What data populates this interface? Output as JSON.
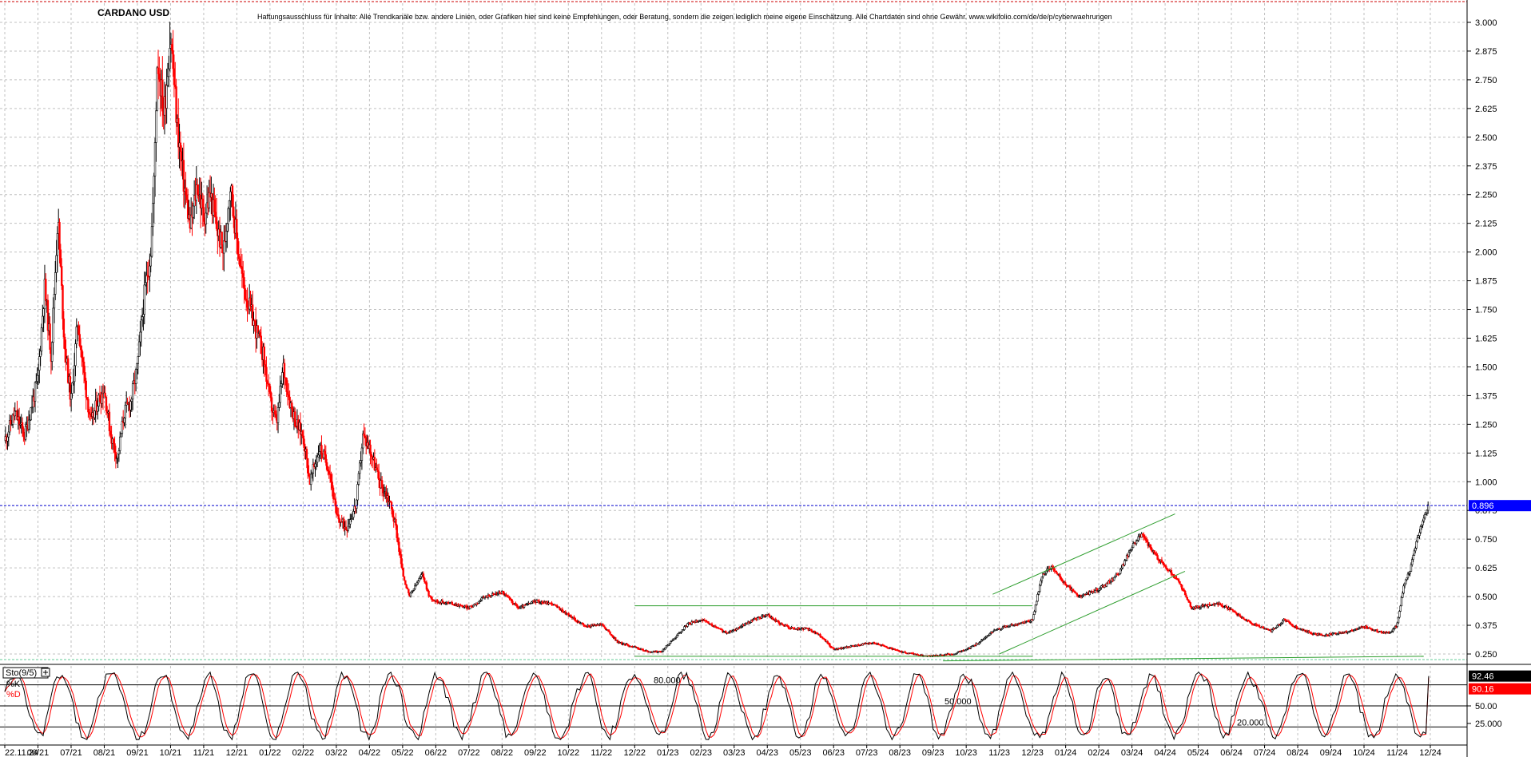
{
  "header": {
    "title": "CARDANO USD",
    "disclaimer": "Haftungsausschluss für Inhalte: Alle Trendkanäle bzw. andere Linien, oder Grafiken hier sind keine Empfehlungen, oder Beratung, sondern die zeigen lediglich meine eigene Einschätzung. Alle Chartdaten sind ohne Gewähr.  www.wikifolio.com/de/de/p/cyberwaehrungen"
  },
  "colors": {
    "up": "#000000",
    "down": "#ff0000",
    "grid": "#c0c0c0",
    "trendline": "#2e9e2e",
    "price_line": "#0000cc",
    "price_badge": "#0000ff",
    "k_line": "#000000",
    "d_line": "#ff0000"
  },
  "chart_data": [
    {
      "type": "candlestick",
      "title": "CARDANO USD",
      "ylim": [
        0.2,
        3.05
      ],
      "y_ticks": [
        "3.000",
        "2.875",
        "2.750",
        "2.625",
        "2.500",
        "2.375",
        "2.250",
        "2.125",
        "2.000",
        "1.875",
        "1.750",
        "1.625",
        "1.500",
        "1.375",
        "1.250",
        "1.125",
        "1.000",
        "0.875",
        "0.750",
        "0.625",
        "0.500",
        "0.375",
        "0.250"
      ],
      "y_tick_values": [
        3.0,
        2.875,
        2.75,
        2.625,
        2.5,
        2.375,
        2.25,
        2.125,
        2.0,
        1.875,
        1.75,
        1.625,
        1.5,
        1.375,
        1.25,
        1.125,
        1.0,
        0.875,
        0.75,
        0.625,
        0.5,
        0.375,
        0.25
      ],
      "x_ticks": [
        "22.11.24",
        "06/21",
        "07/21",
        "08/21",
        "09/21",
        "10/21",
        "11/21",
        "12/21",
        "01/22",
        "02/22",
        "03/22",
        "04/22",
        "05/22",
        "06/22",
        "07/22",
        "08/22",
        "09/22",
        "10/22",
        "11/22",
        "12/22",
        "01/23",
        "02/23",
        "03/23",
        "04/23",
        "05/23",
        "06/23",
        "07/23",
        "08/23",
        "09/23",
        "10/23",
        "11/23",
        "12/23",
        "01/24",
        "02/24",
        "03/24",
        "04/24",
        "05/24",
        "06/24",
        "07/24",
        "08/24",
        "09/24",
        "10/24",
        "11/24",
        "12/24"
      ],
      "x_range": [
        0,
        43
      ],
      "last_price_label": "0.896",
      "last_price": 0.896,
      "price_path": [
        [
          0,
          1.18
        ],
        [
          0.3,
          1.3
        ],
        [
          0.6,
          1.2
        ],
        [
          1.0,
          1.45
        ],
        [
          1.2,
          1.85
        ],
        [
          1.4,
          1.55
        ],
        [
          1.6,
          2.15
        ],
        [
          1.8,
          1.6
        ],
        [
          2.0,
          1.35
        ],
        [
          2.2,
          1.7
        ],
        [
          2.4,
          1.45
        ],
        [
          2.6,
          1.25
        ],
        [
          2.8,
          1.35
        ],
        [
          3.0,
          1.4
        ],
        [
          3.2,
          1.2
        ],
        [
          3.4,
          1.1
        ],
        [
          3.6,
          1.3
        ],
        [
          3.8,
          1.35
        ],
        [
          4.0,
          1.5
        ],
        [
          4.2,
          1.8
        ],
        [
          4.4,
          2.0
        ],
        [
          4.5,
          2.3
        ],
        [
          4.6,
          2.85
        ],
        [
          4.8,
          2.6
        ],
        [
          5.0,
          2.95
        ],
        [
          5.2,
          2.55
        ],
        [
          5.4,
          2.3
        ],
        [
          5.6,
          2.1
        ],
        [
          5.8,
          2.3
        ],
        [
          6.0,
          2.15
        ],
        [
          6.2,
          2.25
        ],
        [
          6.4,
          2.1
        ],
        [
          6.6,
          2.0
        ],
        [
          6.8,
          2.3
        ],
        [
          7.0,
          2.05
        ],
        [
          7.2,
          1.85
        ],
        [
          7.5,
          1.7
        ],
        [
          7.8,
          1.55
        ],
        [
          8.0,
          1.35
        ],
        [
          8.2,
          1.25
        ],
        [
          8.4,
          1.5
        ],
        [
          8.6,
          1.35
        ],
        [
          8.8,
          1.25
        ],
        [
          9.0,
          1.2
        ],
        [
          9.2,
          1.0
        ],
        [
          9.5,
          1.15
        ],
        [
          9.8,
          1.05
        ],
        [
          10.0,
          0.85
        ],
        [
          10.3,
          0.8
        ],
        [
          10.6,
          0.9
        ],
        [
          10.8,
          1.2
        ],
        [
          11.0,
          1.15
        ],
        [
          11.3,
          1.0
        ],
        [
          11.6,
          0.92
        ],
        [
          11.8,
          0.8
        ],
        [
          12.0,
          0.6
        ],
        [
          12.2,
          0.5
        ],
        [
          12.4,
          0.55
        ],
        [
          12.6,
          0.6
        ],
        [
          12.8,
          0.5
        ],
        [
          13.0,
          0.48
        ],
        [
          13.5,
          0.47
        ],
        [
          14.0,
          0.45
        ],
        [
          14.5,
          0.5
        ],
        [
          15.0,
          0.52
        ],
        [
          15.5,
          0.45
        ],
        [
          16.0,
          0.48
        ],
        [
          16.5,
          0.47
        ],
        [
          17.0,
          0.42
        ],
        [
          17.5,
          0.37
        ],
        [
          18.0,
          0.38
        ],
        [
          18.5,
          0.3
        ],
        [
          19.0,
          0.28
        ],
        [
          19.4,
          0.26
        ],
        [
          19.8,
          0.26
        ],
        [
          20.2,
          0.32
        ],
        [
          20.6,
          0.38
        ],
        [
          21.0,
          0.4
        ],
        [
          21.4,
          0.37
        ],
        [
          21.8,
          0.34
        ],
        [
          22.2,
          0.37
        ],
        [
          22.6,
          0.4
        ],
        [
          23.0,
          0.42
        ],
        [
          23.4,
          0.38
        ],
        [
          23.8,
          0.36
        ],
        [
          24.2,
          0.36
        ],
        [
          24.6,
          0.33
        ],
        [
          25.0,
          0.27
        ],
        [
          25.4,
          0.28
        ],
        [
          25.8,
          0.29
        ],
        [
          26.2,
          0.3
        ],
        [
          26.6,
          0.28
        ],
        [
          27.0,
          0.26
        ],
        [
          27.4,
          0.25
        ],
        [
          27.8,
          0.24
        ],
        [
          28.2,
          0.245
        ],
        [
          28.6,
          0.25
        ],
        [
          29.0,
          0.27
        ],
        [
          29.4,
          0.3
        ],
        [
          29.8,
          0.35
        ],
        [
          30.2,
          0.37
        ],
        [
          30.6,
          0.38
        ],
        [
          31.0,
          0.4
        ],
        [
          31.3,
          0.6
        ],
        [
          31.6,
          0.63
        ],
        [
          32.0,
          0.55
        ],
        [
          32.4,
          0.5
        ],
        [
          32.8,
          0.52
        ],
        [
          33.2,
          0.55
        ],
        [
          33.6,
          0.6
        ],
        [
          34.0,
          0.72
        ],
        [
          34.3,
          0.77
        ],
        [
          34.6,
          0.7
        ],
        [
          35.0,
          0.63
        ],
        [
          35.4,
          0.57
        ],
        [
          35.8,
          0.45
        ],
        [
          36.2,
          0.46
        ],
        [
          36.6,
          0.47
        ],
        [
          37.0,
          0.44
        ],
        [
          37.4,
          0.4
        ],
        [
          37.8,
          0.37
        ],
        [
          38.2,
          0.35
        ],
        [
          38.6,
          0.4
        ],
        [
          39.0,
          0.36
        ],
        [
          39.4,
          0.34
        ],
        [
          39.8,
          0.33
        ],
        [
          40.2,
          0.34
        ],
        [
          40.6,
          0.35
        ],
        [
          41.0,
          0.37
        ],
        [
          41.4,
          0.35
        ],
        [
          41.8,
          0.34
        ],
        [
          42.0,
          0.38
        ],
        [
          42.2,
          0.55
        ],
        [
          42.4,
          0.62
        ],
        [
          42.6,
          0.75
        ],
        [
          42.8,
          0.85
        ],
        [
          42.95,
          0.896
        ]
      ],
      "trendlines": [
        {
          "from": [
            19.0,
            0.46
          ],
          "to": [
            31.0,
            0.46
          ]
        },
        {
          "from": [
            19.0,
            0.24
          ],
          "to": [
            31.0,
            0.24
          ]
        },
        {
          "from": [
            28.3,
            0.22
          ],
          "to": [
            42.8,
            0.24
          ]
        },
        {
          "from": [
            29.8,
            0.51
          ],
          "to": [
            35.3,
            0.86
          ]
        },
        {
          "from": [
            30.0,
            0.25
          ],
          "to": [
            35.6,
            0.61
          ]
        }
      ]
    },
    {
      "type": "line",
      "title": "Sto(9/5)",
      "series_labels": [
        "%K",
        "%D"
      ],
      "ylim": [
        0,
        100
      ],
      "y_ticks": [
        "50.00",
        "25.000"
      ],
      "y_tick_values": [
        50,
        25
      ],
      "levels": [
        {
          "value": 80,
          "label": "80.000"
        },
        {
          "value": 50,
          "label": "50.000"
        },
        {
          "value": 20,
          "label": "20.000"
        }
      ],
      "last_k_label": "92.46",
      "last_d_label": "90.16",
      "last_k": 92.46,
      "last_d": 90.16
    }
  ]
}
